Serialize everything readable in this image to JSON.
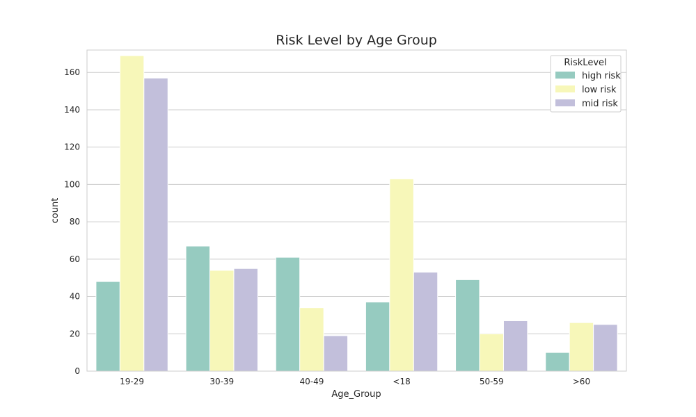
{
  "chart_data": {
    "type": "bar",
    "title": "Risk Level by Age Group",
    "xlabel": "Age_Group",
    "ylabel": "count",
    "ylim": [
      0,
      172
    ],
    "yticks": [
      0,
      20,
      40,
      60,
      80,
      100,
      120,
      140,
      160
    ],
    "categories": [
      "19-29",
      "30-39",
      "40-49",
      "<18",
      "50-59",
      ">60"
    ],
    "series": [
      {
        "name": "high risk",
        "color": "#96cbc0",
        "values": [
          48,
          67,
          61,
          37,
          49,
          10
        ]
      },
      {
        "name": "low risk",
        "color": "#f7f7b9",
        "values": [
          169,
          54,
          34,
          103,
          20,
          26
        ]
      },
      {
        "name": "mid risk",
        "color": "#c2bfdb",
        "values": [
          157,
          55,
          19,
          53,
          27,
          25
        ]
      }
    ],
    "legend": {
      "title": "RiskLevel",
      "placement": "top-right"
    },
    "grid": "horizontal"
  }
}
